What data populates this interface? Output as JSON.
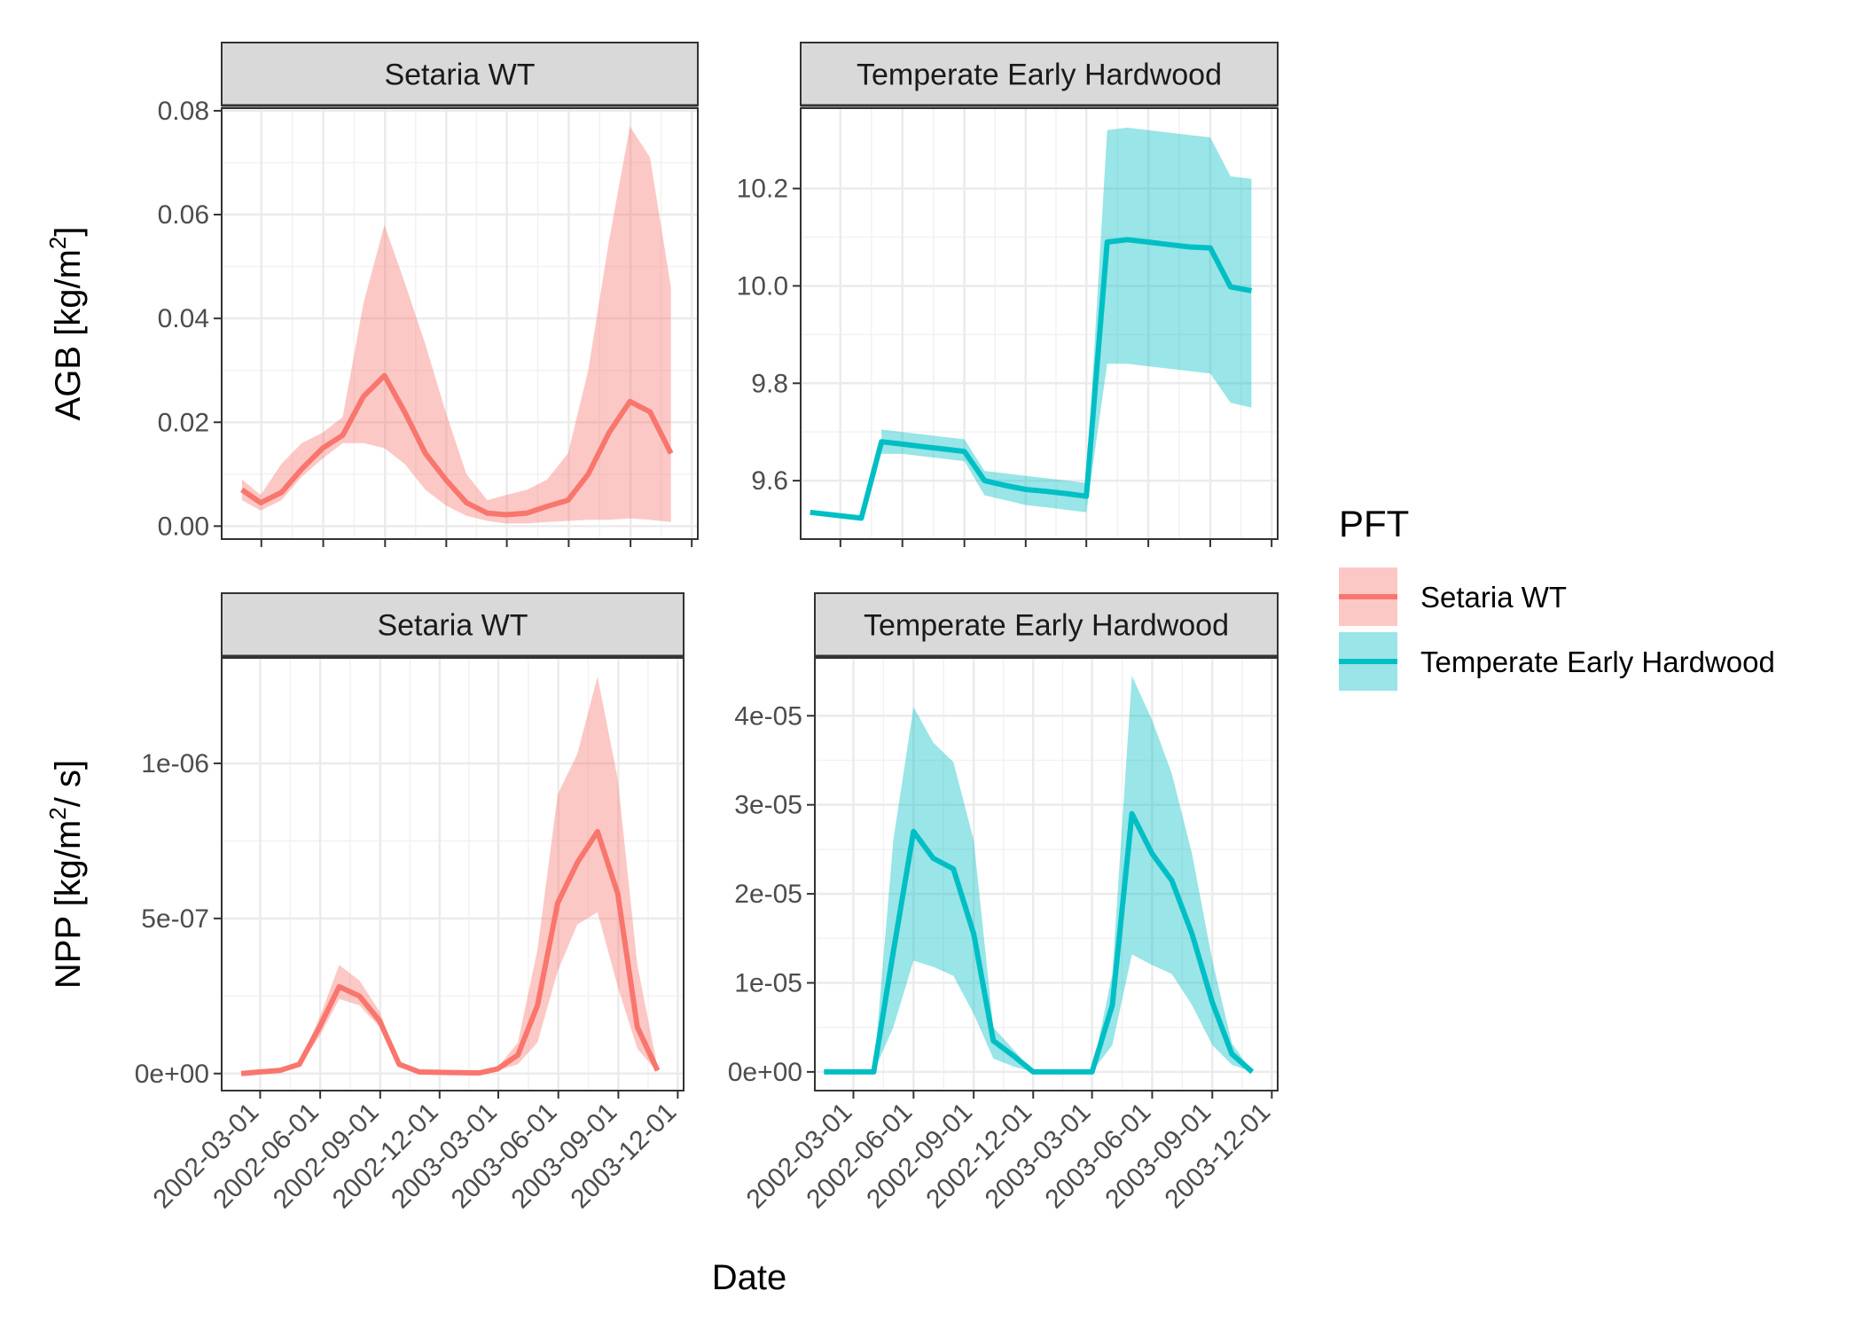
{
  "chart_data": {
    "type": "line",
    "xlabel": "Date",
    "x_tick_labels": [
      "2002-03-01",
      "2002-06-01",
      "2002-09-01",
      "2002-12-01",
      "2003-03-01",
      "2003-06-01",
      "2003-09-01",
      "2003-12-01"
    ],
    "legend": {
      "title": "PFT",
      "placement": "right",
      "entries": [
        {
          "label": "Setaria WT",
          "color": "#F8766D"
        },
        {
          "label": "Temperate Early Hardwood",
          "color": "#00BFC4"
        }
      ]
    },
    "rows": [
      {
        "ylabel_main": "AGB",
        "ylabel_units": "[kg/m",
        "ylabel_sup": "2",
        "ylabel_tail": "]",
        "panels": [
          {
            "strip": "Setaria WT",
            "color": "#F8766D",
            "ylim": [
              -0.0025,
              0.0805
            ],
            "yticks": [
              0,
              0.02,
              0.04,
              0.06,
              0.08
            ],
            "ytick_labels": [
              "0.00",
              "0.02",
              "0.04",
              "0.06",
              "0.08"
            ],
            "x": [
              "2002-01-31",
              "2002-02-28",
              "2002-03-31",
              "2002-04-30",
              "2002-05-31",
              "2002-06-30",
              "2002-07-31",
              "2002-08-31",
              "2002-09-30",
              "2002-10-31",
              "2002-11-30",
              "2002-12-31",
              "2003-01-31",
              "2003-02-28",
              "2003-03-31",
              "2003-04-30",
              "2003-05-31",
              "2003-06-30",
              "2003-07-31",
              "2003-08-31",
              "2003-09-30",
              "2003-10-31"
            ],
            "y": [
              0.007,
              0.0045,
              0.0065,
              0.011,
              0.015,
              0.0175,
              0.025,
              0.029,
              0.022,
              0.014,
              0.009,
              0.0045,
              0.0025,
              0.0022,
              0.0025,
              0.0038,
              0.005,
              0.01,
              0.018,
              0.024,
              0.022,
              0.014
            ],
            "lower": [
              0.005,
              0.003,
              0.005,
              0.0095,
              0.013,
              0.016,
              0.016,
              0.015,
              0.012,
              0.007,
              0.004,
              0.002,
              0.001,
              0.0005,
              0.0005,
              0.0008,
              0.001,
              0.0012,
              0.0012,
              0.0015,
              0.0012,
              0.0008
            ],
            "upper": [
              0.009,
              0.006,
              0.012,
              0.016,
              0.018,
              0.021,
              0.043,
              0.058,
              0.047,
              0.035,
              0.022,
              0.01,
              0.005,
              0.006,
              0.007,
              0.009,
              0.014,
              0.03,
              0.055,
              0.077,
              0.071,
              0.046
            ]
          },
          {
            "strip": "Temperate Early Hardwood",
            "color": "#00BFC4",
            "ylim": [
              9.48,
              10.365
            ],
            "yticks": [
              9.6,
              9.8,
              10.0,
              10.2
            ],
            "ytick_labels": [
              "9.6",
              "9.8",
              "10.0",
              "10.2"
            ],
            "x": [
              "2002-01-15",
              "2002-04-01",
              "2002-05-01",
              "2002-06-01",
              "2002-07-01",
              "2002-08-01",
              "2002-09-01",
              "2002-10-01",
              "2002-11-01",
              "2002-12-01",
              "2003-01-01",
              "2003-02-01",
              "2003-03-01",
              "2003-04-01",
              "2003-05-01",
              "2003-06-01",
              "2003-07-01",
              "2003-08-01",
              "2003-09-01",
              "2003-10-01",
              "2003-11-01"
            ],
            "y": [
              9.535,
              9.523,
              9.68,
              9.675,
              9.67,
              9.665,
              9.66,
              9.6,
              9.59,
              9.582,
              9.578,
              9.573,
              9.568,
              10.09,
              10.095,
              10.09,
              10.085,
              10.08,
              10.078,
              9.998,
              9.99
            ],
            "lower": [
              null,
              null,
              9.655,
              9.655,
              9.65,
              9.645,
              9.64,
              9.57,
              9.56,
              9.55,
              9.545,
              9.54,
              9.535,
              9.84,
              9.84,
              9.835,
              9.83,
              9.825,
              9.82,
              9.76,
              9.75
            ],
            "upper": [
              null,
              null,
              9.705,
              9.7,
              9.695,
              9.69,
              9.685,
              9.62,
              9.615,
              9.61,
              9.605,
              9.6,
              9.595,
              10.32,
              10.325,
              10.32,
              10.315,
              10.31,
              10.305,
              10.225,
              10.22
            ]
          }
        ]
      },
      {
        "ylabel_main": "NPP",
        "ylabel_units": "[kg/m",
        "ylabel_sup": "2",
        "ylabel_tail": "/ s]",
        "panels": [
          {
            "strip": "Setaria WT",
            "color": "#F8766D",
            "ylim": [
              -5.5e-08,
              1.34e-06
            ],
            "yticks": [
              0,
              5e-07,
              1e-06
            ],
            "ytick_labels": [
              "0e+00",
              "5e-07",
              "1e-06"
            ],
            "x": [
              "2002-01-31",
              "2002-02-28",
              "2002-03-31",
              "2002-04-30",
              "2002-05-31",
              "2002-06-30",
              "2002-07-31",
              "2002-08-31",
              "2002-09-30",
              "2002-10-31",
              "2002-11-30",
              "2002-12-31",
              "2003-01-31",
              "2003-02-28",
              "2003-03-31",
              "2003-04-30",
              "2003-05-31",
              "2003-06-30",
              "2003-07-31",
              "2003-08-31",
              "2003-09-30",
              "2003-10-31"
            ],
            "y": [
              0.0,
              5e-09,
              1e-08,
              3e-08,
              1.5e-07,
              2.8e-07,
              2.5e-07,
              1.7e-07,
              3e-08,
              5e-09,
              4e-09,
              3e-09,
              2e-09,
              1.5e-08,
              6e-08,
              2.2e-07,
              5.5e-07,
              6.8e-07,
              7.8e-07,
              5.8e-07,
              1.5e-07,
              1e-08
            ],
            "lower": [
              0.0,
              3e-09,
              8e-09,
              2.5e-08,
              1.2e-07,
              2.4e-07,
              2.2e-07,
              1.5e-07,
              2.5e-08,
              4e-09,
              3e-09,
              2e-09,
              1e-09,
              1e-08,
              3e-08,
              1e-07,
              3.3e-07,
              4.8e-07,
              5.2e-07,
              2.8e-07,
              8e-08,
              5e-09
            ],
            "upper": [
              0.0,
              7e-09,
              1.5e-08,
              3.5e-08,
              1.8e-07,
              3.5e-07,
              3e-07,
              2e-07,
              3.5e-08,
              6e-09,
              5e-09,
              4e-09,
              3e-09,
              2e-08,
              1e-07,
              4e-07,
              9e-07,
              1.03e-06,
              1.28e-06,
              9.5e-07,
              3.5e-07,
              2e-08
            ]
          },
          {
            "strip": "Temperate Early Hardwood",
            "color": "#00BFC4",
            "ylim": [
              -2.1e-06,
              4.65e-05
            ],
            "yticks": [
              0,
              1e-05,
              2e-05,
              3e-05,
              4e-05
            ],
            "ytick_labels": [
              "0e+00",
              "1e-05",
              "2e-05",
              "3e-05",
              "4e-05"
            ],
            "x": [
              "2002-01-15",
              "2002-04-01",
              "2002-05-01",
              "2002-06-01",
              "2002-07-01",
              "2002-08-01",
              "2002-09-01",
              "2002-10-01",
              "2002-11-01",
              "2002-12-01",
              "2003-01-01",
              "2003-02-01",
              "2003-03-01",
              "2003-04-01",
              "2003-05-01",
              "2003-06-01",
              "2003-07-01",
              "2003-08-01",
              "2003-09-01",
              "2003-10-01",
              "2003-11-01"
            ],
            "y": [
              0.0,
              0.0,
              1.35e-05,
              2.7e-05,
              2.4e-05,
              2.28e-05,
              1.55e-05,
              3.5e-06,
              1.8e-06,
              0.0,
              0.0,
              0.0,
              0.0,
              7.5e-06,
              2.9e-05,
              2.45e-05,
              2.15e-05,
              1.55e-05,
              7.8e-06,
              2e-06,
              0.0
            ],
            "lower": [
              0.0,
              0.0,
              5e-06,
              1.25e-05,
              1.18e-05,
              1.08e-05,
              6.5e-06,
              1.5e-06,
              6e-07,
              0.0,
              0.0,
              0.0,
              0.0,
              3e-06,
              1.32e-05,
              1.2e-05,
              1.1e-05,
              7.5e-06,
              3e-06,
              8e-07,
              0.0
            ],
            "upper": [
              0.0,
              0.0,
              2.6e-05,
              4.1e-05,
              3.7e-05,
              3.48e-05,
              2.6e-05,
              5e-06,
              2.5e-06,
              0.0,
              0.0,
              0.0,
              0.0,
              1.1e-05,
              4.45e-05,
              3.95e-05,
              3.35e-05,
              2.45e-05,
              1.25e-05,
              3.2e-06,
              0.0
            ]
          }
        ]
      }
    ]
  }
}
